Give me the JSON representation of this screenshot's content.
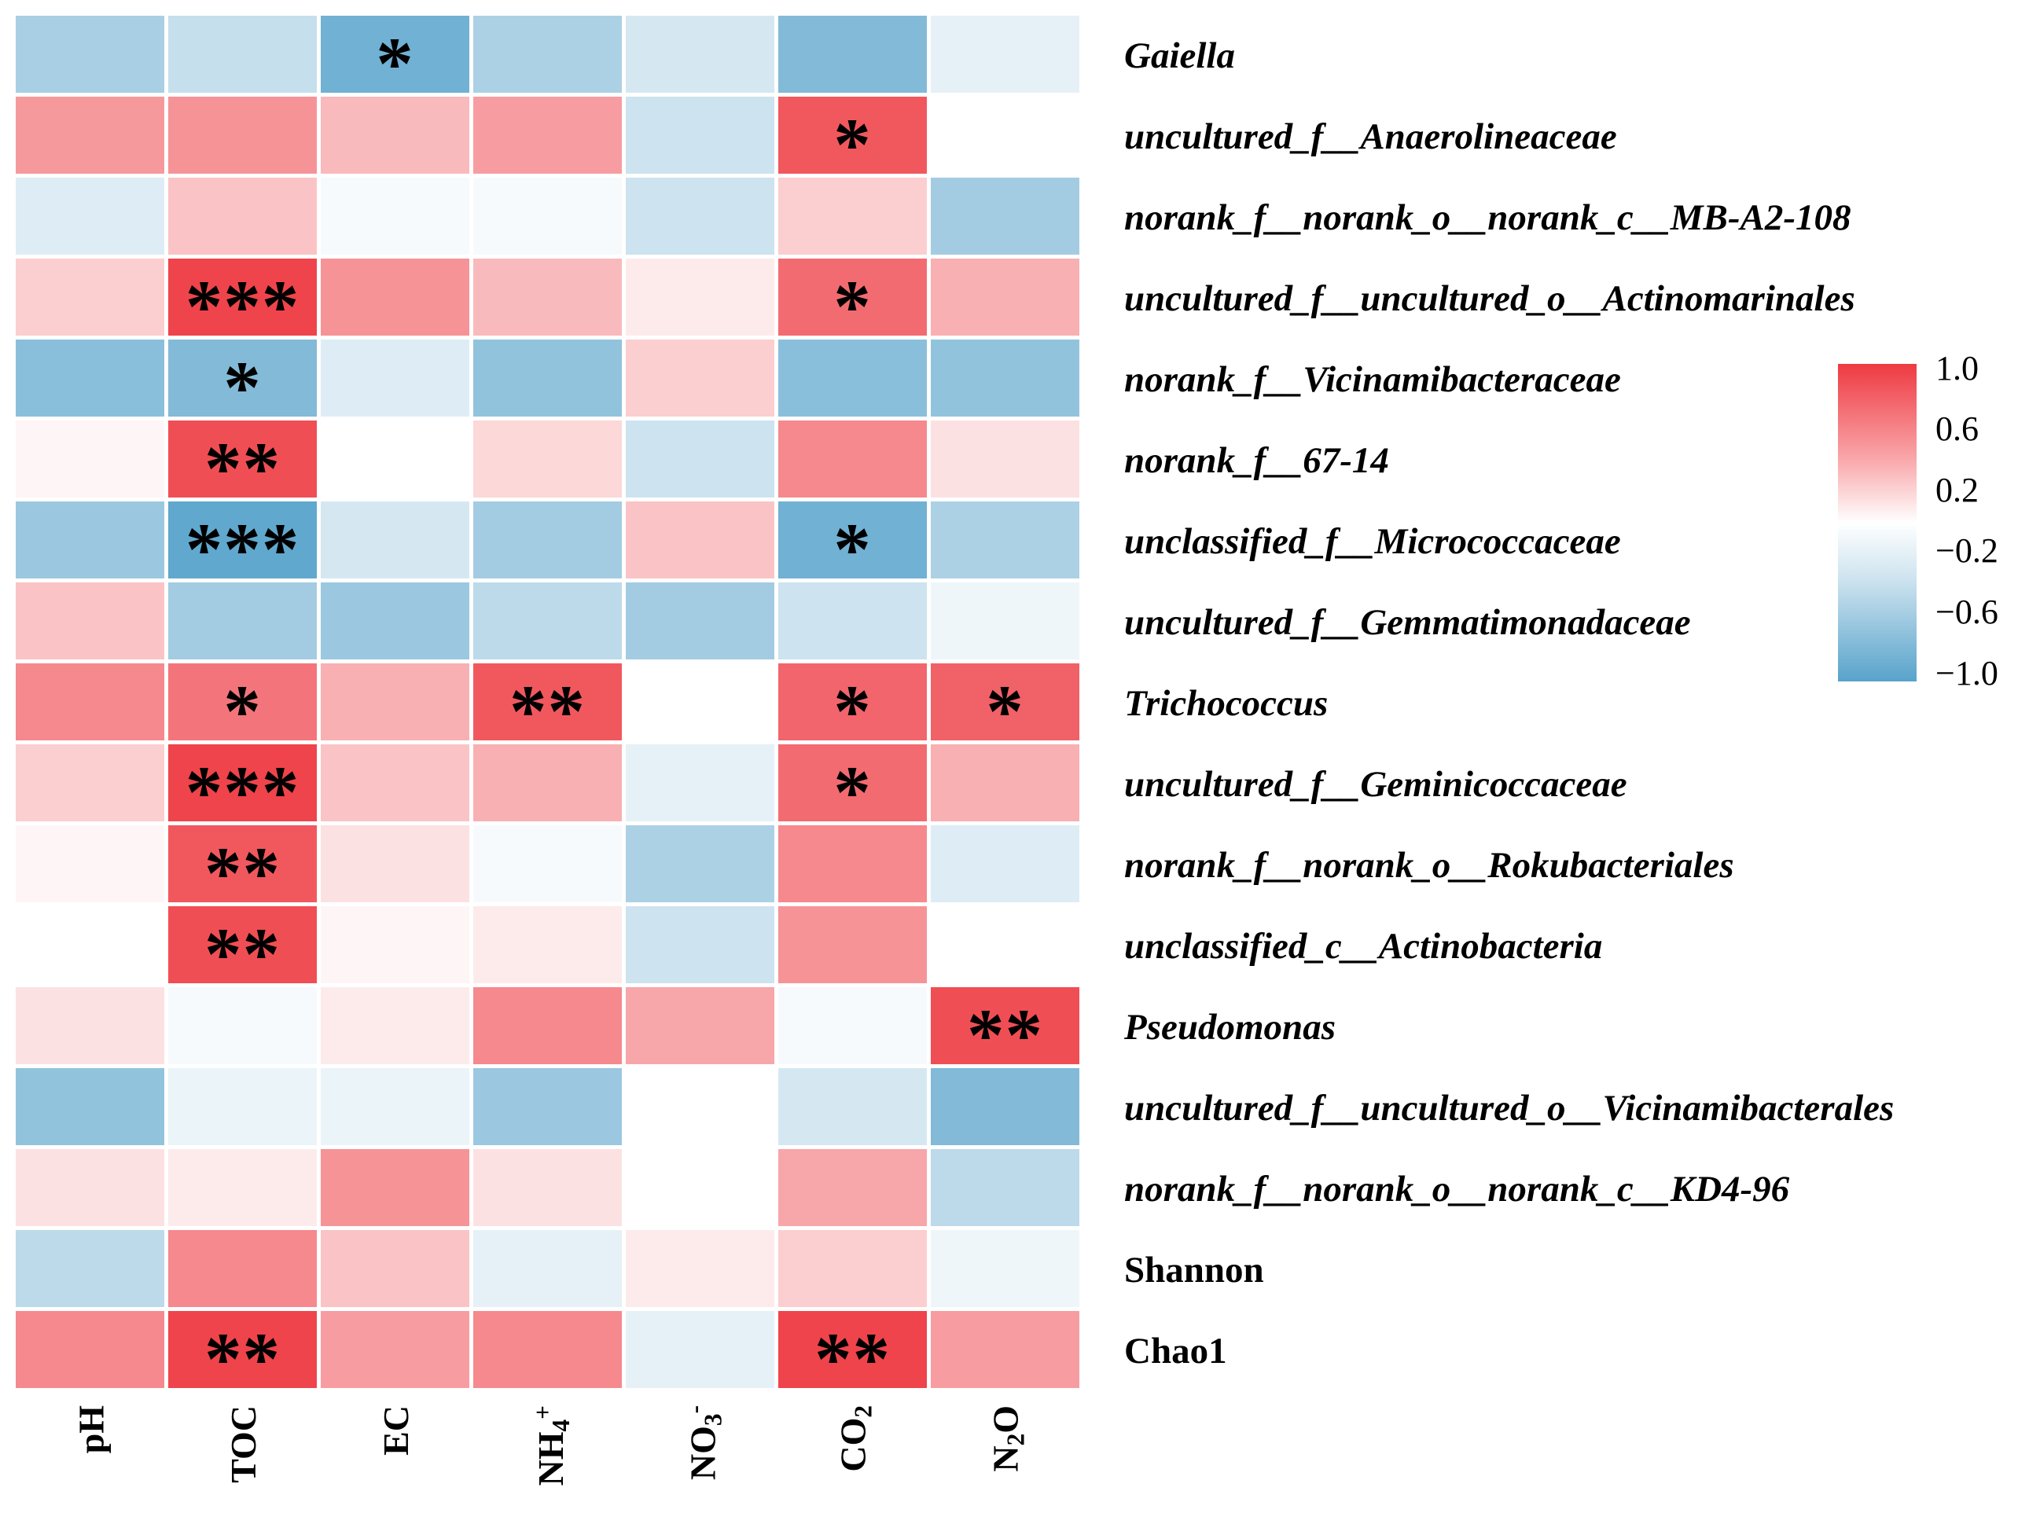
{
  "figure": {
    "background": "#ffffff"
  },
  "chart_data": {
    "type": "heatmap",
    "description": "Correlation heatmap between bacterial taxa / diversity indices and soil properties or gas fluxes",
    "value_range": [
      -1,
      1
    ],
    "grid": "white gaps between cells",
    "legend_position": "right",
    "colors": {
      "positive": "#ee3a42",
      "zero": "#ffffff",
      "negative": "#58a3cb"
    },
    "significance_symbols": {
      "p<0.05": "*",
      "p<0.01": "**",
      "p<0.001": "***"
    },
    "columns": [
      {
        "id": "pH",
        "segments": [
          {
            "t": "pH"
          }
        ]
      },
      {
        "id": "TOC",
        "segments": [
          {
            "t": "TOC"
          }
        ]
      },
      {
        "id": "EC",
        "segments": [
          {
            "t": "EC"
          }
        ]
      },
      {
        "id": "NH4+",
        "segments": [
          {
            "t": "NH"
          },
          {
            "t": "4",
            "style": "sub"
          },
          {
            "t": "+",
            "style": "sup"
          }
        ]
      },
      {
        "id": "NO3-",
        "segments": [
          {
            "t": "NO"
          },
          {
            "t": "3",
            "style": "sub"
          },
          {
            "t": "-",
            "style": "sup"
          }
        ]
      },
      {
        "id": "CO2",
        "segments": [
          {
            "t": "CO"
          },
          {
            "t": "2",
            "style": "sub"
          }
        ]
      },
      {
        "id": "N2O",
        "segments": [
          {
            "t": "N"
          },
          {
            "t": "2",
            "style": "sub"
          },
          {
            "t": "O"
          }
        ]
      }
    ],
    "rows": [
      {
        "label": "Gaiella",
        "italic": true,
        "values": [
          -0.52,
          -0.35,
          -0.85,
          -0.5,
          -0.25,
          -0.75,
          -0.15
        ],
        "sig": [
          "",
          "",
          "*",
          "",
          "",
          "",
          ""
        ]
      },
      {
        "label": "uncultured_f__Anaerolineaceae",
        "italic": true,
        "values": [
          0.52,
          0.55,
          0.35,
          0.5,
          -0.3,
          0.85,
          0
        ],
        "sig": [
          "",
          "",
          "",
          "",
          "",
          "*",
          ""
        ]
      },
      {
        "label": "norank_f__norank_o__norank_c__MB-A2-108",
        "italic": true,
        "values": [
          -0.2,
          0.3,
          -0.05,
          -0.05,
          -0.3,
          0.25,
          -0.55
        ],
        "sig": [
          "",
          "",
          "",
          "",
          "",
          "",
          ""
        ]
      },
      {
        "label": "uncultured_f__uncultured_o__Actinomarinales",
        "italic": true,
        "values": [
          0.25,
          0.95,
          0.55,
          0.35,
          0.1,
          0.75,
          0.4
        ],
        "sig": [
          "",
          "***",
          "",
          "",
          "",
          "*",
          ""
        ]
      },
      {
        "label": "norank_f__Vicinamibacteraceae",
        "italic": true,
        "values": [
          -0.7,
          -0.75,
          -0.2,
          -0.65,
          0.25,
          -0.7,
          -0.65
        ],
        "sig": [
          "",
          "*",
          "",
          "",
          "",
          "",
          ""
        ]
      },
      {
        "label": "norank_f__67-14",
        "italic": true,
        "values": [
          0.05,
          0.9,
          0,
          0.2,
          -0.3,
          0.6,
          0.15
        ],
        "sig": [
          "",
          "**",
          "",
          "",
          "",
          "",
          ""
        ]
      },
      {
        "label": "unclassified_f__Micrococcaceae",
        "italic": true,
        "values": [
          -0.6,
          -0.95,
          -0.25,
          -0.55,
          0.3,
          -0.85,
          -0.5
        ],
        "sig": [
          "",
          "***",
          "",
          "",
          "",
          "*",
          ""
        ]
      },
      {
        "label": "uncultured_f__Gemmatimonadaceae",
        "italic": true,
        "values": [
          0.3,
          -0.55,
          -0.6,
          -0.4,
          -0.55,
          -0.3,
          -0.1
        ],
        "sig": [
          "",
          "",
          "",
          "",
          "",
          "",
          ""
        ]
      },
      {
        "label": "Trichococcus",
        "italic": true,
        "values": [
          0.6,
          0.7,
          0.4,
          0.85,
          0,
          0.78,
          0.8
        ],
        "sig": [
          "",
          "*",
          "",
          "**",
          "",
          "*",
          "*"
        ]
      },
      {
        "label": "uncultured_f__Geminicoccaceae",
        "italic": true,
        "values": [
          0.25,
          0.95,
          0.3,
          0.4,
          -0.15,
          0.75,
          0.4
        ],
        "sig": [
          "",
          "***",
          "",
          "",
          "",
          "*",
          ""
        ]
      },
      {
        "label": "norank_f__norank_o__Rokubacteriales",
        "italic": true,
        "values": [
          0.05,
          0.85,
          0.15,
          -0.05,
          -0.5,
          0.6,
          -0.2
        ],
        "sig": [
          "",
          "**",
          "",
          "",
          "",
          "",
          ""
        ]
      },
      {
        "label": "unclassified_c__Actinobacteria",
        "italic": true,
        "values": [
          0,
          0.9,
          0.05,
          0.1,
          -0.3,
          0.55,
          0
        ],
        "sig": [
          "",
          "**",
          "",
          "",
          "",
          "",
          ""
        ]
      },
      {
        "label": "Pseudomonas",
        "italic": true,
        "values": [
          0.15,
          -0.05,
          0.1,
          0.6,
          0.45,
          -0.05,
          0.9
        ],
        "sig": [
          "",
          "",
          "",
          "",
          "",
          "",
          "**"
        ]
      },
      {
        "label": "uncultured_f__uncultured_o__Vicinamibacterales",
        "italic": true,
        "values": [
          -0.65,
          -0.12,
          -0.12,
          -0.6,
          0,
          -0.25,
          -0.75
        ],
        "sig": [
          "",
          "",
          "",
          "",
          "",
          "",
          ""
        ]
      },
      {
        "label": "norank_f__norank_o__norank_c__KD4-96",
        "italic": true,
        "values": [
          0.15,
          0.1,
          0.55,
          0.15,
          0,
          0.45,
          -0.4
        ],
        "sig": [
          "",
          "",
          "",
          "",
          "",
          "",
          ""
        ]
      },
      {
        "label": "Shannon",
        "italic": false,
        "values": [
          -0.4,
          0.6,
          0.3,
          -0.15,
          0.1,
          0.25,
          -0.1
        ],
        "sig": [
          "",
          "",
          "",
          "",
          "",
          "",
          ""
        ]
      },
      {
        "label": "Chao1",
        "italic": false,
        "values": [
          0.6,
          0.95,
          0.5,
          0.6,
          -0.15,
          0.95,
          0.5
        ],
        "sig": [
          "",
          "**",
          "",
          "",
          "",
          "**",
          ""
        ]
      }
    ],
    "legend": {
      "ticks": [
        "1.0",
        "0.6",
        "0.2",
        "−0.2",
        "−0.6",
        "−1.0"
      ]
    }
  }
}
